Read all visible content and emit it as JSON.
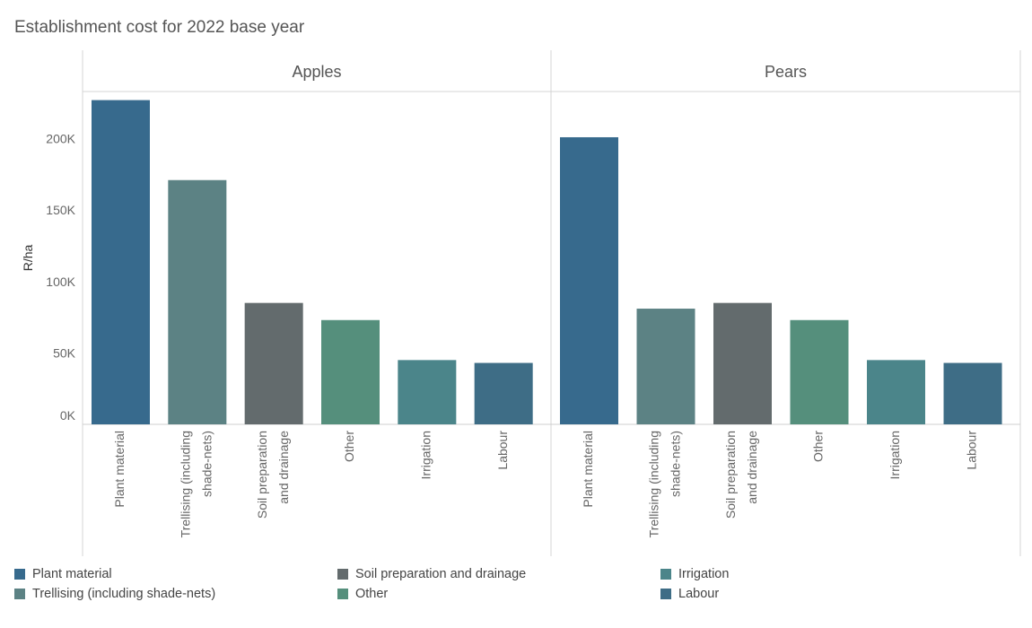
{
  "chart_data": {
    "type": "bar",
    "title": "Establishment cost for 2022 base year",
    "ylabel": "R/ha",
    "ylim": [
      0,
      228000
    ],
    "yticks": [
      0,
      50000,
      100000,
      150000,
      200000
    ],
    "ytick_labels": [
      "0K",
      "50K",
      "100K",
      "150K",
      "200K"
    ],
    "categories": [
      "Plant material",
      "Trellising (including shade-nets)",
      "Soil preparation and drainage",
      "Other",
      "Irrigation",
      "Labour"
    ],
    "category_axis_lines": [
      [
        "Plant material"
      ],
      [
        "Trellising (including",
        "shade-nets)"
      ],
      [
        "Soil preparation",
        "and drainage"
      ],
      [
        "Other"
      ],
      [
        "Irrigation"
      ],
      [
        "Labour"
      ]
    ],
    "colors": [
      "#376a8d",
      "#5c8284",
      "#636b6d",
      "#558f7c",
      "#4b858a",
      "#3e6d86"
    ],
    "panels": [
      {
        "name": "Apples",
        "values": [
          227000,
          171000,
          85000,
          73000,
          45000,
          43000
        ]
      },
      {
        "name": "Pears",
        "values": [
          201000,
          81000,
          85000,
          73000,
          45000,
          43000
        ]
      }
    ],
    "legend": {
      "position": "bottom",
      "items": [
        "Plant material",
        "Trellising (including shade-nets)",
        "Soil preparation and drainage",
        "Other",
        "Irrigation",
        "Labour"
      ]
    },
    "grid": false
  }
}
